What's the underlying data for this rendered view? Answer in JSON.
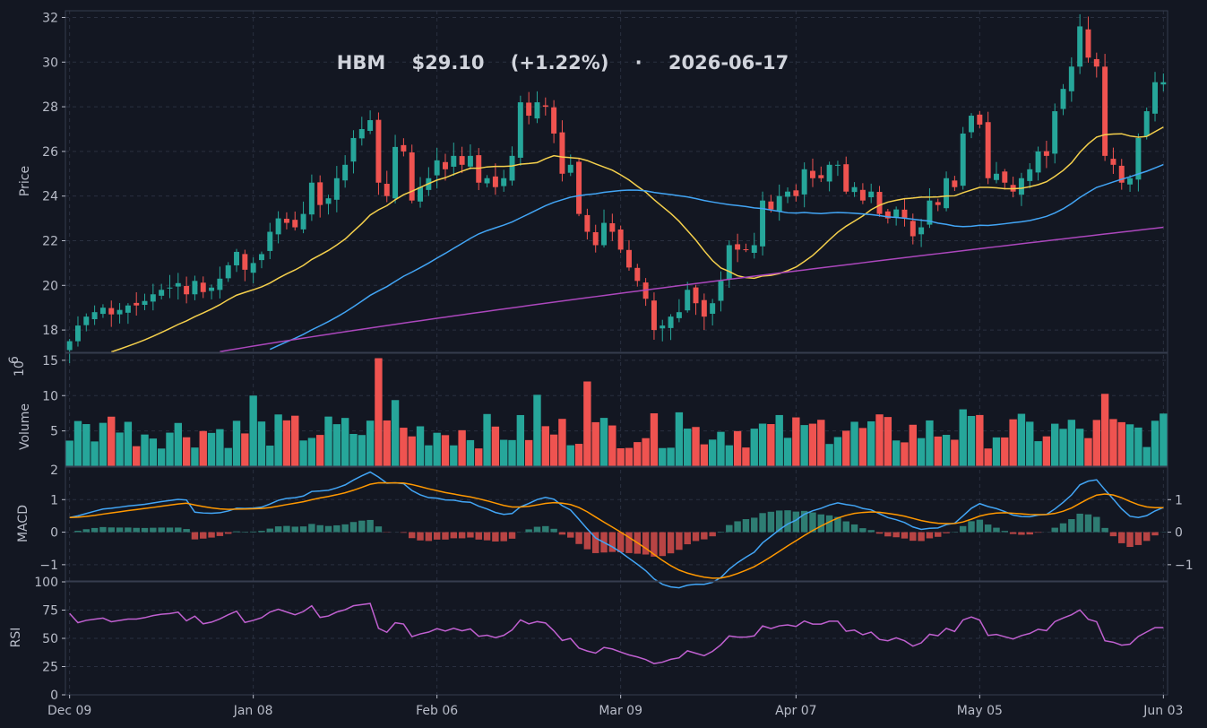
{
  "title": "HBM    $29.10    (+1.22%)    ·    2026-06-17",
  "colors": {
    "up": "#26a69a",
    "down": "#ef5350",
    "ma1": "#f5d04c",
    "ma2": "#42a5f5",
    "ma3": "#ab47bc",
    "macd": "#42a5f5",
    "signal": "#ff9800",
    "rsi": "#c060d0"
  },
  "x_ticks": [
    "Dec 09",
    "Jan 08",
    "Feb 06",
    "Mar 09",
    "Apr 07",
    "May 05",
    "Jun 03"
  ],
  "panels": {
    "price": {
      "ylabel": "Price",
      "yticks": [
        "18",
        "20",
        "22",
        "24",
        "26",
        "28",
        "30",
        "32"
      ]
    },
    "volume": {
      "ylabel": "Volume",
      "exponent": "10",
      "exponent_power": "6",
      "yticks": [
        "5",
        "10",
        "15"
      ],
      "yticks_bottom": "2"
    },
    "macd": {
      "ylabel": "MACD",
      "yticks": [
        "1",
        "0",
        "−1"
      ],
      "right_ticks": [
        "1",
        "0",
        "−1"
      ]
    },
    "rsi": {
      "ylabel": "RSI",
      "yticks": [
        "0",
        "25",
        "50",
        "75",
        "100"
      ]
    }
  },
  "chart_data": {
    "type": "candlestick",
    "ylim_price": [
      17,
      32.3
    ],
    "ylim_volume_millions": [
      0,
      16
    ],
    "ylim_macd": [
      -1.5,
      2
    ],
    "ylim_rsi": [
      0,
      100
    ],
    "ohlc_close_approx": [
      17.5,
      18.2,
      18.6,
      18.8,
      19.0,
      18.7,
      18.9,
      19.1,
      19.1,
      19.3,
      19.6,
      19.8,
      19.9,
      20.1,
      19.6,
      20.2,
      19.7,
      19.9,
      20.3,
      20.9,
      21.5,
      20.7,
      21.0,
      21.4,
      22.4,
      23.0,
      22.8,
      22.6,
      23.2,
      24.6,
      23.6,
      23.9,
      24.8,
      25.4,
      26.6,
      27.0,
      27.4,
      24.6,
      24.0,
      26.2,
      26.0,
      23.8,
      24.4,
      24.8,
      25.6,
      25.2,
      25.8,
      25.4,
      25.8,
      24.6,
      24.8,
      24.4,
      24.8,
      25.8,
      28.2,
      27.6,
      28.2,
      28.0,
      26.8,
      25.0,
      25.4,
      23.2,
      22.4,
      21.8,
      22.8,
      22.4,
      21.6,
      20.8,
      20.2,
      19.4,
      18.0,
      18.2,
      18.6,
      18.8,
      19.8,
      19.2,
      18.6,
      19.2,
      20.2,
      21.8,
      21.6,
      21.6,
      21.8,
      23.8,
      23.4,
      24.0,
      24.2,
      24.0,
      25.2,
      24.8,
      24.8,
      25.4,
      25.4,
      24.2,
      24.4,
      23.8,
      24.2,
      23.2,
      23.0,
      23.4,
      23.0,
      22.2,
      22.6,
      23.8,
      23.6,
      24.8,
      24.4,
      26.8,
      27.6,
      27.2,
      24.8,
      25.0,
      24.6,
      24.2,
      24.8,
      25.2,
      26.0,
      25.8,
      27.8,
      28.8,
      29.8,
      31.6,
      30.2,
      29.8,
      25.8,
      25.4,
      24.6,
      24.8,
      26.6,
      27.8,
      29.1,
      29.1
    ],
    "macd_note": "MACD line, signal line and histogram; RSI line",
    "indicators": [
      "MA 20",
      "MA 50",
      "MA 200",
      "MACD",
      "Signal",
      "RSI"
    ]
  }
}
